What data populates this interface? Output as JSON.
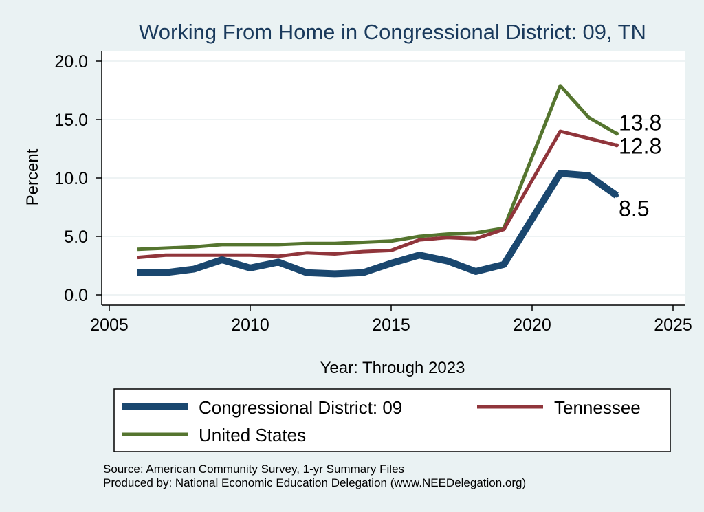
{
  "chart_data": {
    "type": "line",
    "title": "Working From Home in Congressional District: 09, TN",
    "xlabel": "Year: Through 2023",
    "ylabel": "Percent",
    "xlim": [
      2005,
      2025
    ],
    "ylim": [
      0,
      20
    ],
    "x_ticks": [
      "2005",
      "2010",
      "2015",
      "2020",
      "2025"
    ],
    "y_ticks": [
      "0.0",
      "5.0",
      "10.0",
      "15.0",
      "20.0"
    ],
    "grid": true,
    "legend_position": "bottom",
    "x": [
      2006,
      2007,
      2008,
      2009,
      2010,
      2011,
      2012,
      2013,
      2014,
      2015,
      2016,
      2017,
      2018,
      2019,
      2021,
      2022,
      2023
    ],
    "series": [
      {
        "name": "Congressional District: 09",
        "color": "#1a476f",
        "values": [
          1.9,
          1.9,
          2.2,
          3.0,
          2.3,
          2.8,
          1.9,
          1.8,
          1.9,
          2.7,
          3.4,
          2.9,
          2.0,
          2.6,
          10.4,
          10.2,
          8.5
        ],
        "end_label": "8.5"
      },
      {
        "name": "Tennessee",
        "color": "#90353b",
        "values": [
          3.2,
          3.4,
          3.4,
          3.4,
          3.4,
          3.3,
          3.6,
          3.5,
          3.7,
          3.8,
          4.7,
          4.9,
          4.8,
          5.6,
          14.0,
          13.4,
          12.8
        ],
        "end_label": "12.8"
      },
      {
        "name": "United States",
        "color": "#55752f",
        "values": [
          3.9,
          4.0,
          4.1,
          4.3,
          4.3,
          4.3,
          4.4,
          4.4,
          4.5,
          4.6,
          5.0,
          5.2,
          5.3,
          5.7,
          17.9,
          15.2,
          13.8
        ],
        "end_label": "13.8"
      }
    ]
  },
  "footer": {
    "source": "Source: American Community Survey, 1-yr Summary Files",
    "produced_by": "Produced by: National Economic Education Delegation (www.NEEDelegation.org)"
  }
}
